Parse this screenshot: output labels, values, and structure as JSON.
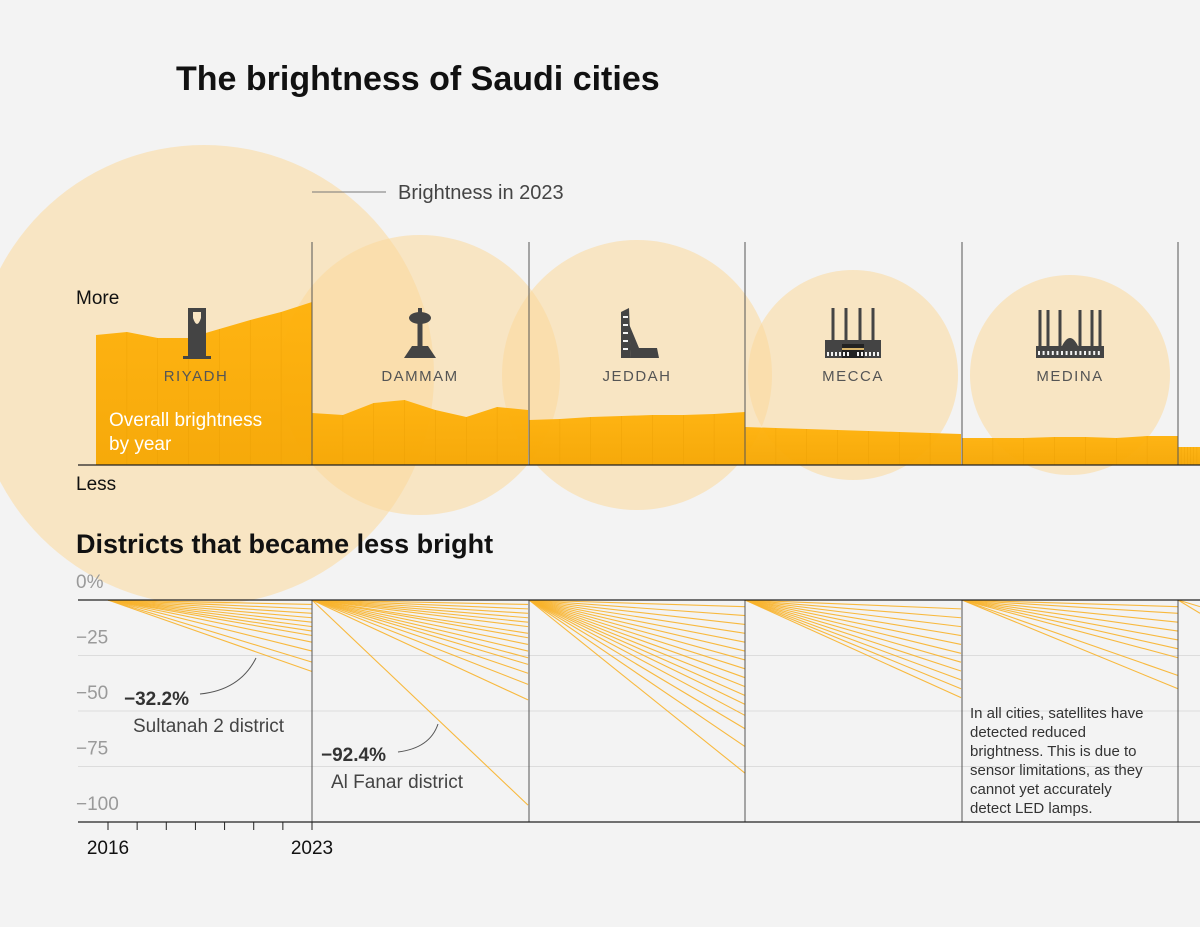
{
  "colors": {
    "background": "#f3f3f3",
    "circle_fill": "#fbd99a",
    "area_top": "#ffb109",
    "area_bottom": "#f6a600",
    "district_line": "#f8b22a",
    "text_dark": "#111111",
    "text_mid": "#444444",
    "text_light": "#9a9a9a",
    "city_label": "#555555",
    "overlay_text": "#ffffff"
  },
  "title": "The brightness  of Saudi cities",
  "section2_title": "Districts that became less bright",
  "legend": {
    "circle_label": "Brightness in 2023",
    "area_label_line1": "Overall brightness",
    "area_label_line2": "by year"
  },
  "top_axis": {
    "more": "More",
    "less": "Less"
  },
  "bottom_axis": {
    "y_ticks": [
      {
        "value": 0,
        "label": "0%"
      },
      {
        "value": -25,
        "label": "−25"
      },
      {
        "value": -50,
        "label": "−50"
      },
      {
        "value": -75,
        "label": "−75"
      },
      {
        "value": -100,
        "label": "−100"
      }
    ],
    "x_start_label": "2016",
    "x_end_label": "2023"
  },
  "annotations": [
    {
      "city": "Riyadh",
      "value": "−32.2%",
      "label": "Sultanah 2 district"
    },
    {
      "city": "Dammam",
      "value": "−92.4%",
      "label": "Al Fanar district"
    }
  ],
  "note_lines": [
    "In all cities, satellites have",
    "detected reduced",
    "brightness. This is due to",
    "sensor limitations, as they",
    "cannot yet accurately",
    "detect LED lamps."
  ],
  "icons": [
    "kingdom-tower-icon",
    "water-tower-icon",
    "jeddah-tower-icon",
    "kaaba-mosque-icon",
    "prophet-mosque-icon"
  ],
  "chart_data": {
    "type": "area",
    "years": [
      2016,
      2017,
      2018,
      2019,
      2020,
      2021,
      2022,
      2023
    ],
    "cities": [
      {
        "name": "RIYADH",
        "icon": "kingdom-tower-icon",
        "brightness_2023": 230,
        "overall_brightness": [
          130,
          133,
          127,
          127,
          136,
          145,
          153,
          163
        ],
        "district_changes_pct": [
          -32.2,
          -28,
          -23,
          -19,
          -16,
          -14,
          -12,
          -10,
          -8,
          -6,
          -4,
          -2
        ]
      },
      {
        "name": "DAMMAM",
        "icon": "water-tower-icon",
        "brightness_2023": 140,
        "overall_brightness": [
          52,
          50,
          62,
          65,
          55,
          48,
          58,
          55
        ],
        "district_changes_pct": [
          -92.4,
          -45,
          -38,
          -33,
          -29,
          -26,
          -23,
          -20,
          -17,
          -15,
          -12,
          -10,
          -8,
          -6,
          -4,
          -2
        ]
      },
      {
        "name": "JEDDAH",
        "icon": "jeddah-tower-icon",
        "brightness_2023": 135,
        "overall_brightness": [
          45,
          46,
          48,
          49,
          50,
          50,
          51,
          53
        ],
        "district_changes_pct": [
          -78,
          -66,
          -58,
          -52,
          -47,
          -43,
          -39,
          -35,
          -31,
          -27,
          -23,
          -19,
          -15,
          -11,
          -7,
          -3
        ]
      },
      {
        "name": "MECCA",
        "icon": "kaaba-mosque-icon",
        "brightness_2023": 105,
        "overall_brightness": [
          38,
          37,
          36,
          35,
          34,
          33,
          32,
          31
        ],
        "district_changes_pct": [
          -44,
          -40,
          -36,
          -32,
          -28,
          -24,
          -20,
          -16,
          -12,
          -8,
          -4
        ]
      },
      {
        "name": "MEDINA",
        "icon": "prophet-mosque-icon",
        "brightness_2023": 100,
        "overall_brightness": [
          27,
          27,
          27,
          28,
          28,
          27,
          29,
          29
        ],
        "district_changes_pct": [
          -40,
          -34,
          -26,
          -22,
          -18,
          -14,
          -10,
          -6,
          -3
        ]
      },
      {
        "name": "",
        "icon": "",
        "brightness_2023": 0,
        "overall_brightness": [
          18,
          18,
          18,
          18,
          18,
          18,
          18,
          18
        ],
        "district_changes_pct": [
          -6,
          -3
        ]
      }
    ]
  }
}
